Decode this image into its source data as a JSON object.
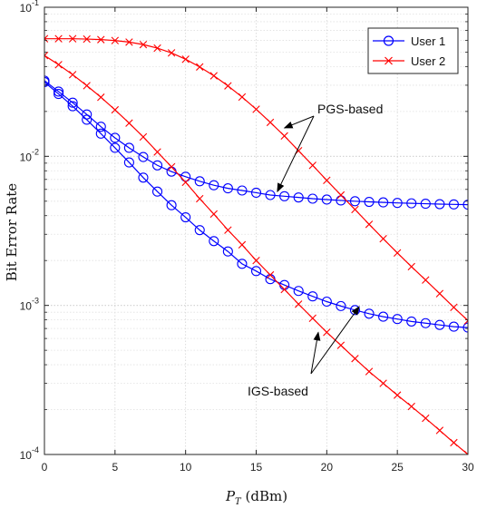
{
  "chart_data": {
    "type": "line",
    "xlabel": "P_T (dBm)",
    "xlabel_main": "P",
    "xlabel_sub": "T",
    "xlabel_unit": " (dBm)",
    "ylabel": "Bit Error Rate",
    "xlim": [
      0,
      30
    ],
    "ylim": [
      0.0001,
      0.1
    ],
    "yscale": "log",
    "grid": true,
    "legend_position": "top-right",
    "x_ticks": [
      0,
      5,
      10,
      15,
      20,
      25,
      30
    ],
    "y_ticks": [
      {
        "value": 0.1,
        "mantissa": "10",
        "exp": "-1"
      },
      {
        "value": 0.01,
        "mantissa": "10",
        "exp": "-2"
      },
      {
        "value": 0.001,
        "mantissa": "10",
        "exp": "-3"
      },
      {
        "value": 0.0001,
        "mantissa": "10",
        "exp": "-4"
      }
    ],
    "x": [
      0,
      1,
      2,
      3,
      4,
      5,
      6,
      7,
      8,
      9,
      10,
      11,
      12,
      13,
      14,
      15,
      16,
      17,
      18,
      19,
      20,
      21,
      22,
      23,
      24,
      25,
      26,
      27,
      28,
      29,
      30
    ],
    "series": [
      {
        "name": "User 1",
        "color": "#0000ff",
        "marker": "circle",
        "values": [
          0.0322,
          0.0272,
          0.0229,
          0.0191,
          0.0158,
          0.0133,
          0.0114,
          0.0099,
          0.0087,
          0.0079,
          0.0073,
          0.0068,
          0.0064,
          0.0061,
          0.0059,
          0.0057,
          0.0055,
          0.0054,
          0.0053,
          0.0052,
          0.00513,
          0.00506,
          0.005,
          0.00495,
          0.00491,
          0.00487,
          0.00484,
          0.00481,
          0.00478,
          0.00476,
          0.00474
        ]
      },
      {
        "name": "User 1",
        "color": "#0000ff",
        "marker": "circle",
        "legend": false,
        "values": [
          0.0315,
          0.0262,
          0.0217,
          0.0176,
          0.0142,
          0.0114,
          0.0091,
          0.0072,
          0.0058,
          0.0047,
          0.0039,
          0.0032,
          0.0027,
          0.0023,
          0.0019,
          0.0017,
          0.0015,
          0.00137,
          0.00125,
          0.00115,
          0.00106,
          0.00099,
          0.00093,
          0.00088,
          0.00084,
          0.00081,
          0.00078,
          0.00076,
          0.00074,
          0.00072,
          0.00071
        ]
      },
      {
        "name": "User 2",
        "color": "#ff0000",
        "marker": "x",
        "values": [
          0.0615,
          0.0615,
          0.0615,
          0.0612,
          0.0607,
          0.0598,
          0.0584,
          0.0562,
          0.0532,
          0.0494,
          0.0448,
          0.0398,
          0.0347,
          0.0297,
          0.025,
          0.0207,
          0.0169,
          0.0137,
          0.0109,
          0.0087,
          0.0069,
          0.0055,
          0.0044,
          0.0035,
          0.0028,
          0.00225,
          0.00182,
          0.00148,
          0.0012,
          0.00097,
          0.00079
        ]
      },
      {
        "name": "User 2",
        "color": "#ff0000",
        "marker": "x",
        "legend": false,
        "values": [
          0.0475,
          0.0412,
          0.0353,
          0.0298,
          0.0249,
          0.0205,
          0.0167,
          0.0135,
          0.0107,
          0.0085,
          0.0067,
          0.0052,
          0.0041,
          0.0032,
          0.00255,
          0.002,
          0.0016,
          0.00128,
          0.00102,
          0.00082,
          0.00066,
          0.00054,
          0.00044,
          0.00036,
          0.0003,
          0.00025,
          0.00021,
          0.000175,
          0.000145,
          0.00012,
          0.0001
        ]
      }
    ],
    "annotations": [
      {
        "text": "PGS-based",
        "arrow_targets": [
          [
            17,
            0.0155
          ],
          [
            16.5,
            0.0058
          ]
        ]
      },
      {
        "text": "IGS-based",
        "arrow_targets": [
          [
            22.3,
            0.00098
          ],
          [
            19.4,
            0.00066
          ]
        ]
      }
    ]
  }
}
